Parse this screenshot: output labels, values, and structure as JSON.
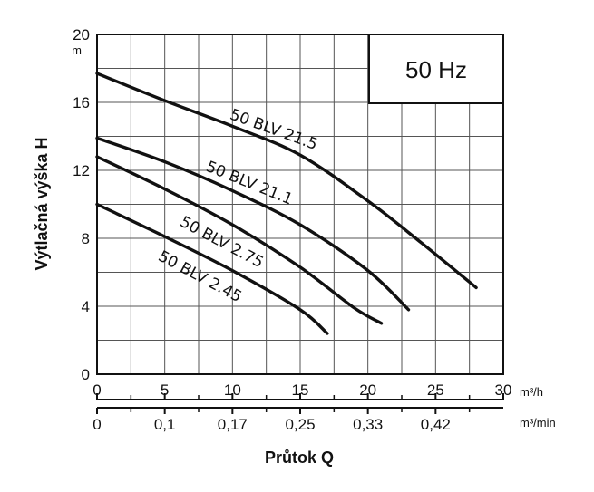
{
  "chart_data": {
    "type": "line",
    "frequency_badge": "50 Hz",
    "ylabel": "Výtlačná výška H",
    "yunit": "m",
    "xlabel": "Průtok Q",
    "x_unit_primary": "m³/h",
    "x_unit_secondary": "m³/min",
    "ylim": [
      0,
      20
    ],
    "xlim": [
      0,
      30
    ],
    "yticks": [
      0,
      4,
      8,
      12,
      16,
      20
    ],
    "xticks": [
      0,
      5,
      10,
      15,
      20,
      25,
      30
    ],
    "secondary_xticks": [
      {
        "x": 0,
        "label": "0"
      },
      {
        "x": 5,
        "label": "0,1"
      },
      {
        "x": 10,
        "label": "0,17"
      },
      {
        "x": 15,
        "label": "0,25"
      },
      {
        "x": 20,
        "label": "0,33"
      },
      {
        "x": 25,
        "label": "0,42"
      }
    ],
    "grid": true,
    "series": [
      {
        "name": "50 BLV 21.5",
        "points": [
          [
            0,
            17.7
          ],
          [
            5,
            16.1
          ],
          [
            10,
            14.6
          ],
          [
            15,
            12.9
          ],
          [
            20,
            10.2
          ],
          [
            24,
            7.7
          ],
          [
            28,
            5.1
          ]
        ]
      },
      {
        "name": "50 BLV 21.1",
        "points": [
          [
            0,
            13.9
          ],
          [
            5,
            12.5
          ],
          [
            10,
            10.8
          ],
          [
            15,
            8.8
          ],
          [
            20,
            6.1
          ],
          [
            23,
            3.8
          ]
        ]
      },
      {
        "name": "50 BLV 2.75",
        "points": [
          [
            0,
            12.8
          ],
          [
            5,
            10.9
          ],
          [
            10,
            8.8
          ],
          [
            15,
            6.3
          ],
          [
            19,
            3.9
          ],
          [
            21,
            3.0
          ]
        ]
      },
      {
        "name": "50 BLV 2.45",
        "points": [
          [
            0,
            10.0
          ],
          [
            5,
            8.1
          ],
          [
            10,
            6.1
          ],
          [
            15,
            3.8
          ],
          [
            17,
            2.4
          ]
        ]
      }
    ]
  }
}
